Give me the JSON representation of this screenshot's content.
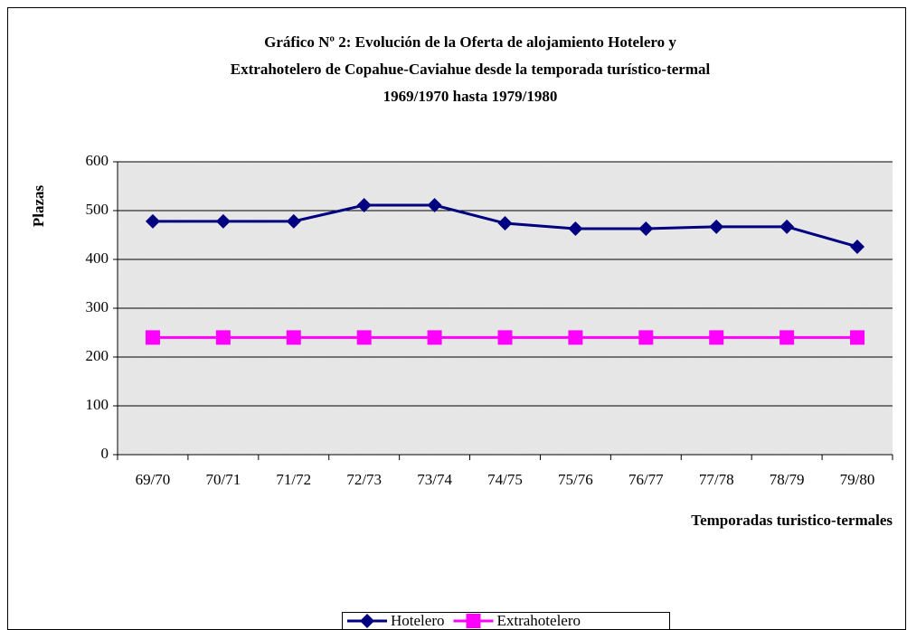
{
  "chart_data": {
    "type": "line",
    "title": [
      "Gráfico Nº 2: Evolución de la Oferta de alojamiento Hotelero y",
      "Extrahotelero de Copahue-Caviahue desde la temporada turístico-termal",
      "1969/1970 hasta 1979/1980"
    ],
    "y_label": "Plazas",
    "x_label": "Temporadas turistico-termales",
    "categories": [
      "69/70",
      "70/71",
      "71/72",
      "72/73",
      "73/74",
      "74/75",
      "75/76",
      "76/77",
      "77/78",
      "78/79",
      "79/80"
    ],
    "series": [
      {
        "name": "Hotelero",
        "color": "#000080",
        "marker": "diamond",
        "values": [
          478,
          478,
          478,
          511,
          511,
          474,
          463,
          463,
          467,
          467,
          426
        ]
      },
      {
        "name": "Extrahotelero",
        "color": "#ff00ff",
        "marker": "square",
        "values": [
          240,
          240,
          240,
          240,
          240,
          240,
          240,
          240,
          240,
          240,
          240
        ]
      }
    ],
    "ylim": [
      0,
      600
    ],
    "yticks": [
      0,
      100,
      200,
      300,
      400,
      500,
      600
    ],
    "grid": true,
    "legend": "bottom"
  }
}
